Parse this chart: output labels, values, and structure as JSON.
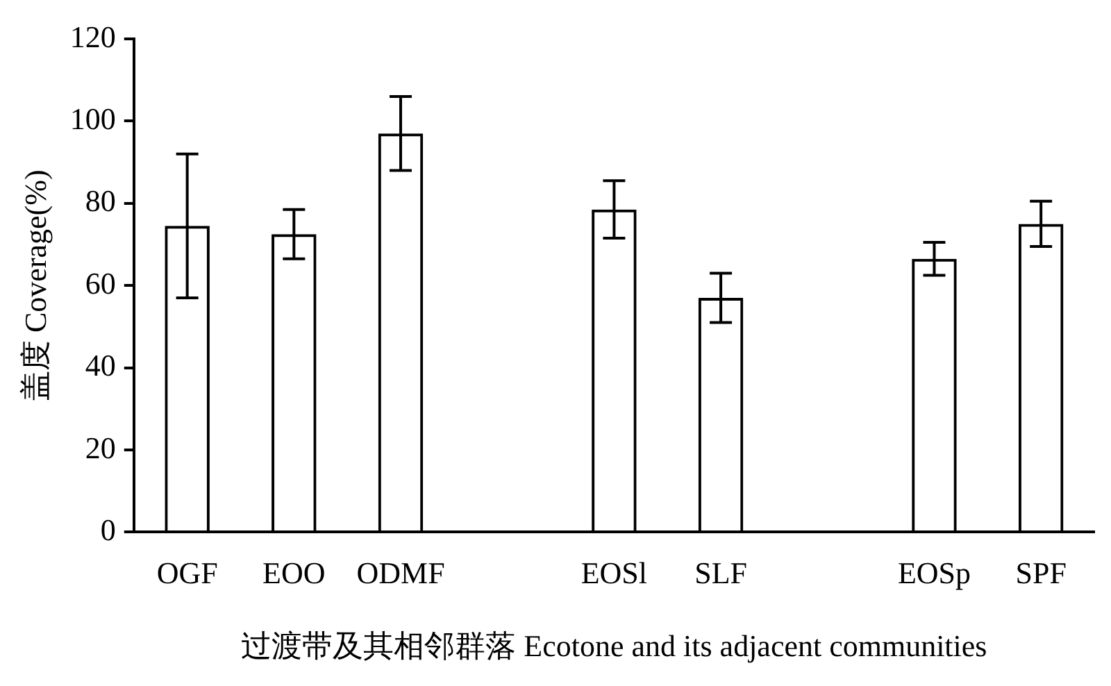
{
  "chart_data": {
    "type": "bar",
    "xlabel": "过渡带及其相邻群落 Ecotone and its adjacent communities",
    "ylabel": "盖度 Coverage(%)",
    "categories": [
      "OGF",
      "EOO",
      "ODMF",
      null,
      "EOSl",
      "SLF",
      null,
      "EOSp",
      "SPF"
    ],
    "values": [
      74.5,
      72.5,
      97,
      null,
      78.5,
      57,
      null,
      66.5,
      75
    ],
    "errors": [
      17.5,
      6,
      9,
      null,
      7,
      6,
      null,
      4,
      5.5
    ],
    "color": "#000000",
    "ylim": [
      0,
      120
    ],
    "yticks": [
      0,
      20,
      40,
      60,
      80,
      100,
      120
    ],
    "grid": false,
    "legend": false
  }
}
